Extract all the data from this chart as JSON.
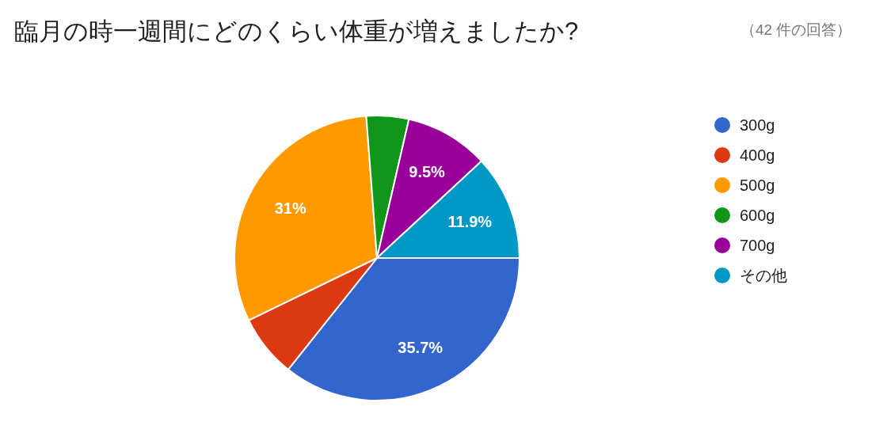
{
  "chart_data": {
    "type": "pie",
    "title": "臨月の時一週間にどのくらい体重が増えましたか?",
    "subtitle": "（42 件の回答）",
    "categories": [
      "300g",
      "400g",
      "500g",
      "600g",
      "700g",
      "その他"
    ],
    "values": [
      35.7,
      7.1,
      31,
      4.8,
      9.5,
      11.9
    ],
    "colors": [
      "#3366cc",
      "#dc3912",
      "#ff9900",
      "#109618",
      "#990099",
      "#0099c6"
    ],
    "value_labels": [
      "35.7%",
      null,
      "31%",
      null,
      "9.5%",
      "11.9%"
    ],
    "legend": "right"
  }
}
